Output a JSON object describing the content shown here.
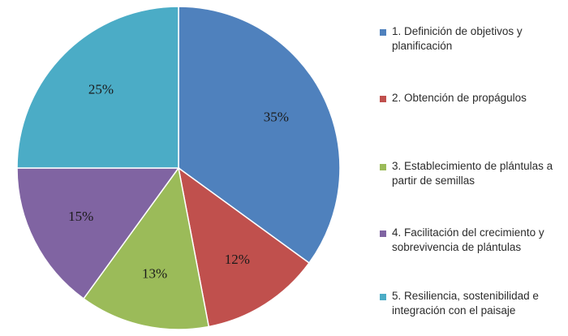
{
  "chart_data": {
    "type": "pie",
    "title": "",
    "start_angle_deg": 90,
    "direction": "clockwise",
    "labels": [
      "1. Definición de objetivos y planificación",
      "2. Obtención de propágulos",
      "3. Establecimiento de plántulas a partir de semillas",
      "4. Facilitación del crecimiento y sobrevivencia de plántulas",
      "5. Resiliencia, sostenibilidad e integración con el paisaje"
    ],
    "values": [
      35,
      12,
      13,
      15,
      25
    ],
    "value_labels": [
      "35%",
      "12%",
      "13%",
      "15%",
      "25%"
    ],
    "colors": [
      "#4f81bd",
      "#c0504d",
      "#9bbb59",
      "#8064a2",
      "#4bacc6"
    ],
    "legend_position": "right"
  }
}
